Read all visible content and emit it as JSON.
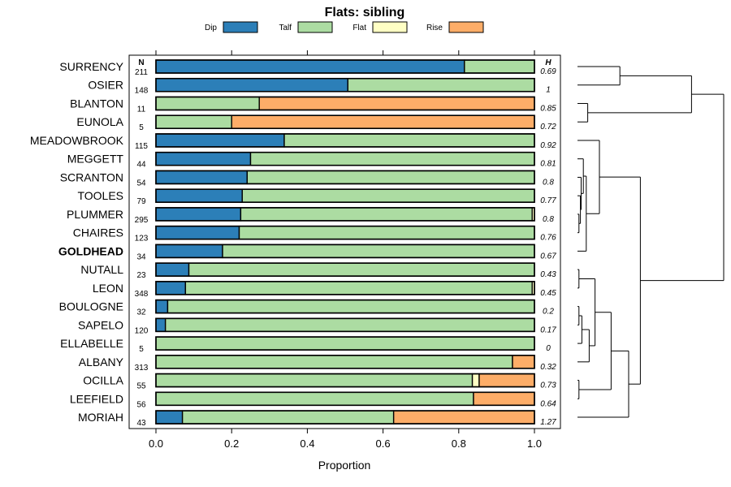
{
  "chart_data": {
    "type": "bar",
    "subtype": "stacked-horizontal-proportion",
    "title": "Flats: sibling",
    "xlabel": "Proportion",
    "xlim": [
      0,
      1
    ],
    "x_ticks": [
      "0.0",
      "0.2",
      "0.4",
      "0.6",
      "0.8",
      "1.0"
    ],
    "n_header": "N",
    "h_header": "H",
    "legend": [
      {
        "name": "Dip",
        "color": "#2c7fb8"
      },
      {
        "name": "Talf",
        "color": "#acdca2"
      },
      {
        "name": "Flat",
        "color": "#ffffc4"
      },
      {
        "name": "Rise",
        "color": "#fdad68"
      }
    ],
    "categories": [
      "SURRENCY",
      "OSIER",
      "BLANTON",
      "EUNOLA",
      "MEADOWBROOK",
      "MEGGETT",
      "SCRANTON",
      "TOOLES",
      "PLUMMER",
      "CHAIRES",
      "GOLDHEAD",
      "NUTALL",
      "LEON",
      "BOULOGNE",
      "SAPELO",
      "ELLABELLE",
      "ALBANY",
      "OCILLA",
      "LEEFIELD",
      "MORIAH"
    ],
    "highlight": "GOLDHEAD",
    "n": [
      "211",
      "148",
      "11",
      "5",
      "115",
      "44",
      "54",
      "79",
      "295",
      "123",
      "34",
      "23",
      "348",
      "32",
      "120",
      "5",
      "313",
      "55",
      "56",
      "43"
    ],
    "h": [
      "0.69",
      "1",
      "0.85",
      "0.72",
      "0.92",
      "0.81",
      "0.8",
      "0.77",
      "0.8",
      "0.76",
      "0.67",
      "0.43",
      "0.45",
      "0.2",
      "0.17",
      "0",
      "0.32",
      "0.73",
      "0.64",
      "1.27"
    ],
    "series": [
      {
        "name": "Dip",
        "values": [
          0.815,
          0.507,
          0,
          0,
          0.339,
          0.25,
          0.241,
          0.228,
          0.224,
          0.22,
          0.176,
          0.087,
          0.078,
          0.031,
          0.025,
          0,
          0,
          0,
          0,
          0.07
        ]
      },
      {
        "name": "Talf",
        "values": [
          0.185,
          0.493,
          0.273,
          0.2,
          0.661,
          0.75,
          0.759,
          0.772,
          0.77,
          0.78,
          0.824,
          0.913,
          0.916,
          0.969,
          0.975,
          1,
          0.942,
          0.836,
          0.839,
          0.558
        ]
      },
      {
        "name": "Flat",
        "values": [
          0,
          0,
          0,
          0,
          0,
          0,
          0,
          0,
          0.006,
          0,
          0,
          0,
          0.006,
          0,
          0,
          0,
          0,
          0.018,
          0,
          0
        ]
      },
      {
        "name": "Rise",
        "values": [
          0,
          0,
          0.727,
          0.8,
          0,
          0,
          0,
          0,
          0,
          0,
          0,
          0,
          0,
          0,
          0,
          0,
          0.058,
          0.146,
          0.161,
          0.372
        ]
      }
    ],
    "dendrogram": {
      "type": "hierarchical-clustering",
      "order": [
        "SURRENCY",
        "OSIER",
        "BLANTON",
        "EUNOLA",
        "MEADOWBROOK",
        "MEGGETT",
        "SCRANTON",
        "TOOLES",
        "PLUMMER",
        "CHAIRES",
        "GOLDHEAD",
        "NUTALL",
        "LEON",
        "BOULOGNE",
        "SAPELO",
        "ELLABELLE",
        "ALBANY",
        "OCILLA",
        "LEEFIELD",
        "MORIAH"
      ],
      "merges": [
        {
          "a": "SURRENCY",
          "b": "OSIER",
          "height": 0.29
        },
        {
          "a": "BLANTON",
          "b": "EUNOLA",
          "height": 0.07
        },
        {
          "a": "SURRENCY",
          "b": "BLANTON",
          "height": 0.78
        },
        {
          "a": "PLUMMER",
          "b": "CHAIRES",
          "height": 0.01
        },
        {
          "a": "TOOLES",
          "b": "PLUMMER",
          "height": 0.02
        },
        {
          "a": "SCRANTON",
          "b": "TOOLES",
          "height": 0.025
        },
        {
          "a": "MEGGETT",
          "b": "SCRANTON",
          "height": 0.04
        },
        {
          "a": "MEGGETT",
          "b": "GOLDHEAD",
          "height": 0.06
        },
        {
          "a": "MEADOWBROOK",
          "b": "MEGGETT",
          "height": 0.15
        },
        {
          "a": "NUTALL",
          "b": "LEON",
          "height": 0.01
        },
        {
          "a": "BOULOGNE",
          "b": "SAPELO",
          "height": 0.01
        },
        {
          "a": "BOULOGNE",
          "b": "ELLABELLE",
          "height": 0.03
        },
        {
          "a": "BOULOGNE",
          "b": "ALBANY",
          "height": 0.08
        },
        {
          "a": "NUTALL",
          "b": "BOULOGNE",
          "height": 0.12
        },
        {
          "a": "OCILLA",
          "b": "LEEFIELD",
          "height": 0.01
        },
        {
          "a": "NUTALL",
          "b": "OCILLA",
          "height": 0.23
        },
        {
          "a": "NUTALL",
          "b": "MORIAH",
          "height": 0.35
        },
        {
          "a": "MEADOWBROOK",
          "b": "NUTALL",
          "height": 0.43
        },
        {
          "a": "SURRENCY",
          "b": "MEADOWBROOK",
          "height": 1.0
        }
      ]
    }
  }
}
